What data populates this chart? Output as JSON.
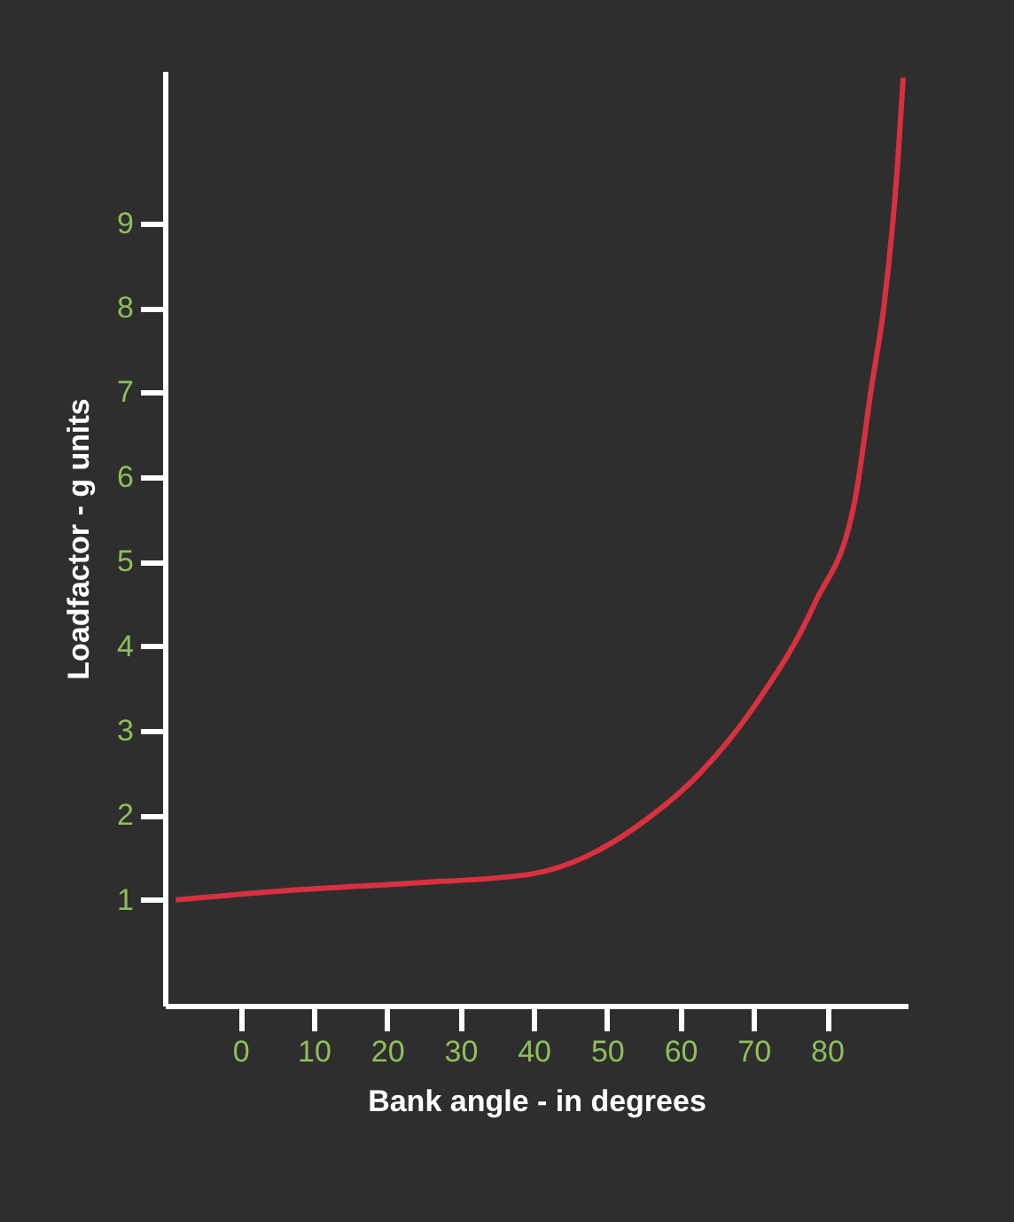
{
  "chart_data": {
    "type": "line",
    "xlabel": "Bank angle - in degrees",
    "ylabel": "Loadfactor -    g units",
    "xlim": [
      -10.3,
      91
    ],
    "ylim": [
      -0.25,
      10.8
    ],
    "xticks": [
      0,
      10,
      20,
      30,
      40,
      50,
      60,
      70,
      80
    ],
    "yticks": [
      1,
      2,
      3,
      4,
      5,
      6,
      7,
      8,
      9
    ],
    "grid": false,
    "marker": "none",
    "line_style": "solid",
    "series": [
      {
        "color": "#d9303f",
        "x": [
          -8.8,
          8.0,
          23.7,
          39.3,
          47.1,
          54.9,
          62.7,
          70.5,
          78.3,
          83.8,
          86.1,
          87.7,
          89.6,
          90.4
        ],
        "values": [
          1.0,
          1.12,
          1.2,
          1.3,
          1.51,
          1.92,
          2.5,
          3.34,
          4.5,
          5.72,
          7.08,
          7.97,
          9.66,
          10.72
        ]
      }
    ]
  }
}
